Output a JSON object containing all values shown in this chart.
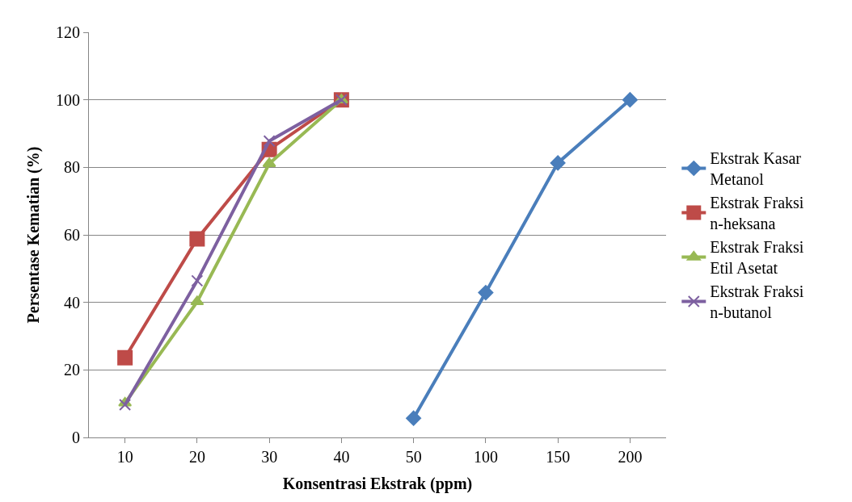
{
  "chart_data": {
    "type": "line",
    "xlabel": "Konsentrasi Ekstrak (ppm)",
    "ylabel": "Persentase Kematian (%)",
    "categories": [
      "10",
      "20",
      "30",
      "40",
      "50",
      "100",
      "150",
      "200"
    ],
    "series": [
      {
        "name": "Ekstrak Kasar Metanol",
        "color": "#4a7ebb",
        "marker": "diamond",
        "values": [
          null,
          null,
          null,
          null,
          5.7,
          42.9,
          81.3,
          100
        ]
      },
      {
        "name": "Ekstrak Fraksi n-heksana",
        "color": "#be4b48",
        "marker": "square",
        "values": [
          23.6,
          58.8,
          85.3,
          100,
          null,
          null,
          null,
          null
        ]
      },
      {
        "name": "Ekstrak Fraksi Etil Asetat",
        "color": "#98b954",
        "marker": "triangle",
        "values": [
          10.2,
          40.2,
          81.1,
          100,
          null,
          null,
          null,
          null
        ]
      },
      {
        "name": "Ekstrak Fraksi n-butanol",
        "color": "#7d60a0",
        "marker": "cross",
        "values": [
          9.7,
          46.4,
          87.8,
          100,
          null,
          null,
          null,
          null
        ]
      }
    ],
    "ylim": [
      0,
      120
    ],
    "yticks": [
      0,
      20,
      40,
      60,
      80,
      100,
      120
    ],
    "grid": "y",
    "legend": "right",
    "line_style": "solid"
  }
}
